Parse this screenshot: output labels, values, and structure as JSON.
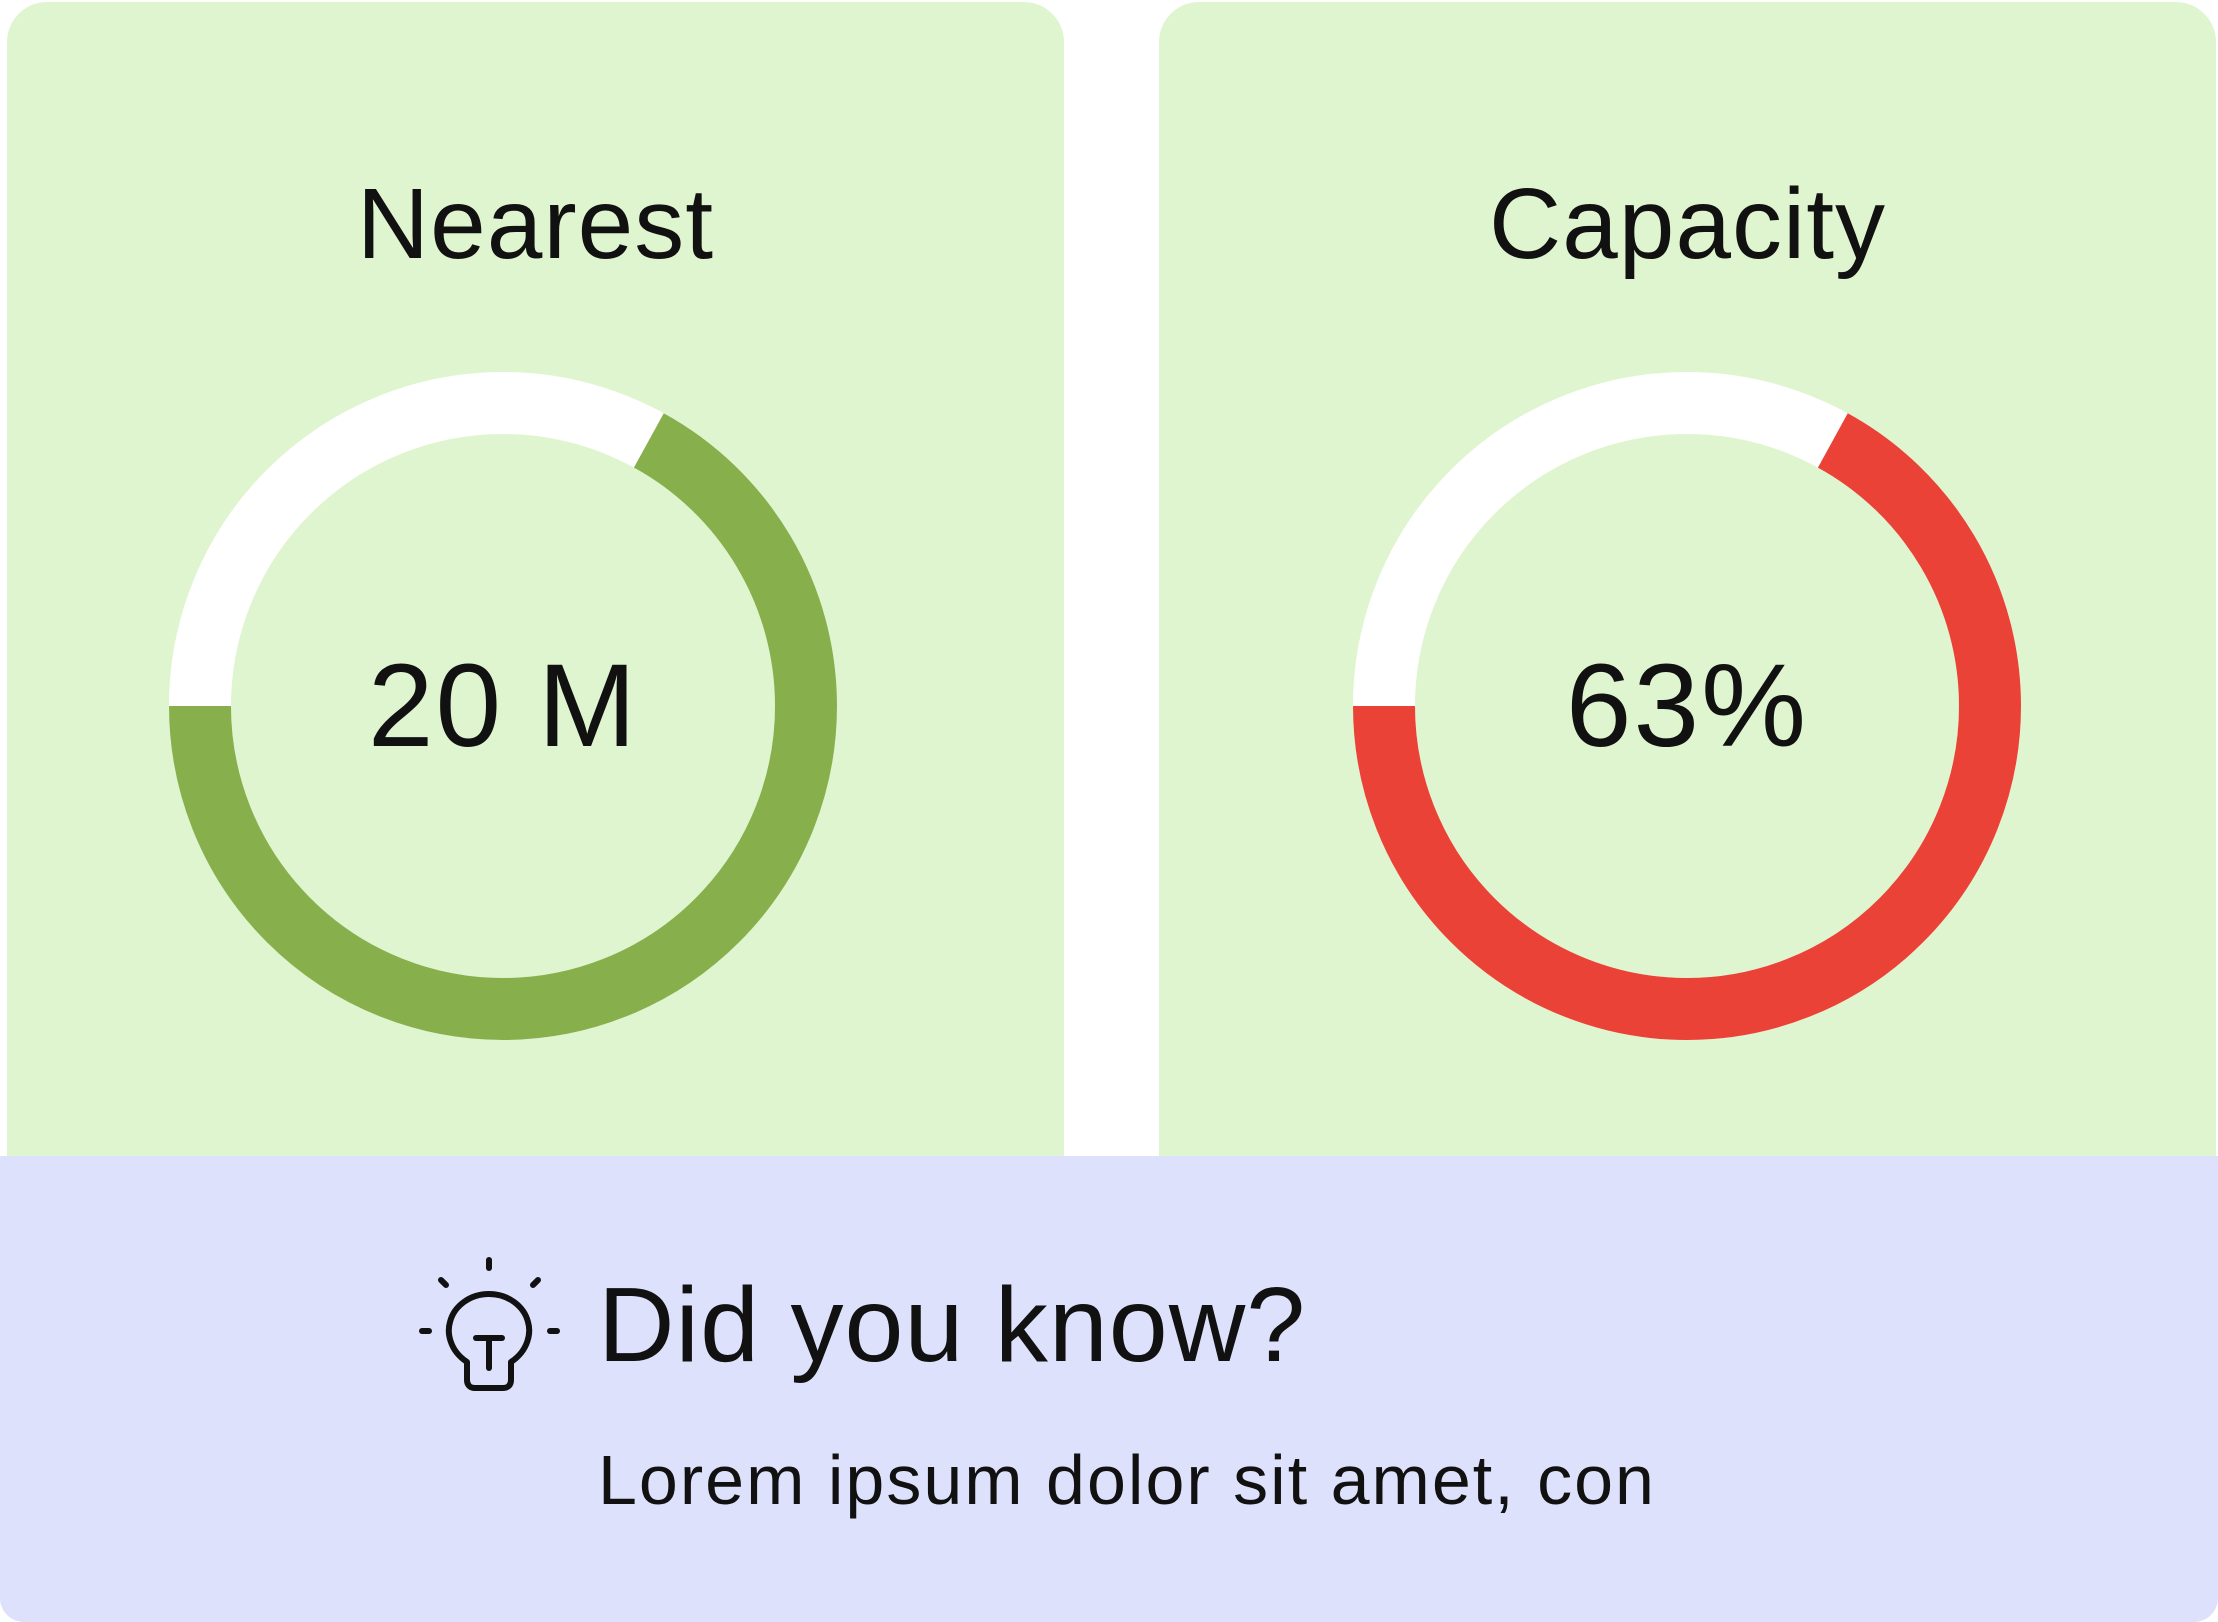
{
  "colors": {
    "card_background": "#dff5cf",
    "banner_background": "#dde1fb",
    "track": "#ffffff",
    "nearest_arc": "#87b04c",
    "capacity_arc": "#ea4236",
    "text": "#111111"
  },
  "cards": [
    {
      "title": "Nearest",
      "value": "20 M",
      "fill_fraction": 0.67,
      "arc_color": "#87b04c"
    },
    {
      "title": "Capacity",
      "value": "63%",
      "fill_fraction": 0.67,
      "arc_color": "#ea4236"
    }
  ],
  "banner": {
    "icon": "lightbulb-icon",
    "title": "Did you know?",
    "text": "Lorem ipsum dolor sit amet, con"
  }
}
